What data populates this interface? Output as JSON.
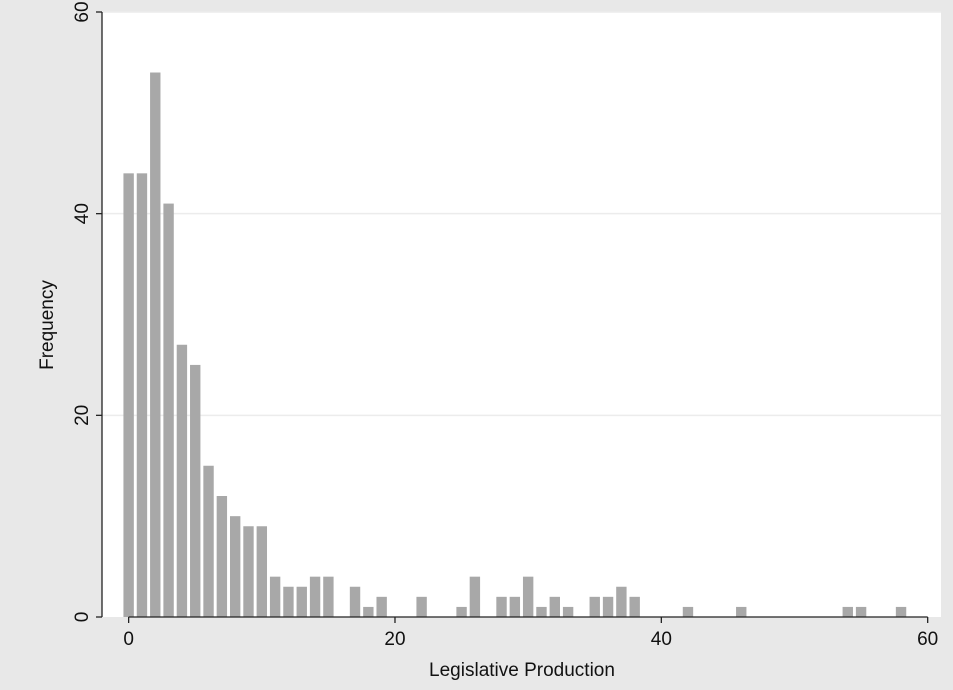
{
  "chart_data": {
    "type": "bar",
    "title": "",
    "xlabel": "Legislative Production",
    "ylabel": "Frequency",
    "xlim": [
      -2,
      61
    ],
    "ylim": [
      0,
      60
    ],
    "xticks": [
      0,
      20,
      40,
      60
    ],
    "yticks": [
      0,
      20,
      40,
      60
    ],
    "grid": true,
    "bar_color": "#a8a8a8",
    "x": [
      0,
      1,
      2,
      3,
      4,
      5,
      6,
      7,
      8,
      9,
      10,
      11,
      12,
      13,
      14,
      15,
      17,
      18,
      19,
      22,
      25,
      26,
      28,
      29,
      30,
      31,
      32,
      33,
      35,
      36,
      37,
      38,
      42,
      46,
      54,
      55,
      58
    ],
    "values": [
      44,
      44,
      54,
      41,
      27,
      25,
      15,
      12,
      10,
      9,
      9,
      4,
      3,
      3,
      4,
      4,
      3,
      1,
      2,
      2,
      1,
      4,
      2,
      2,
      4,
      1,
      2,
      1,
      2,
      2,
      3,
      2,
      1,
      1,
      1,
      1,
      1
    ]
  },
  "colors": {
    "background": "#e8e8e8",
    "plot_area": "#ffffff",
    "bar": "#a8a8a8",
    "gridline": "#ececec",
    "axis": "#222222"
  }
}
